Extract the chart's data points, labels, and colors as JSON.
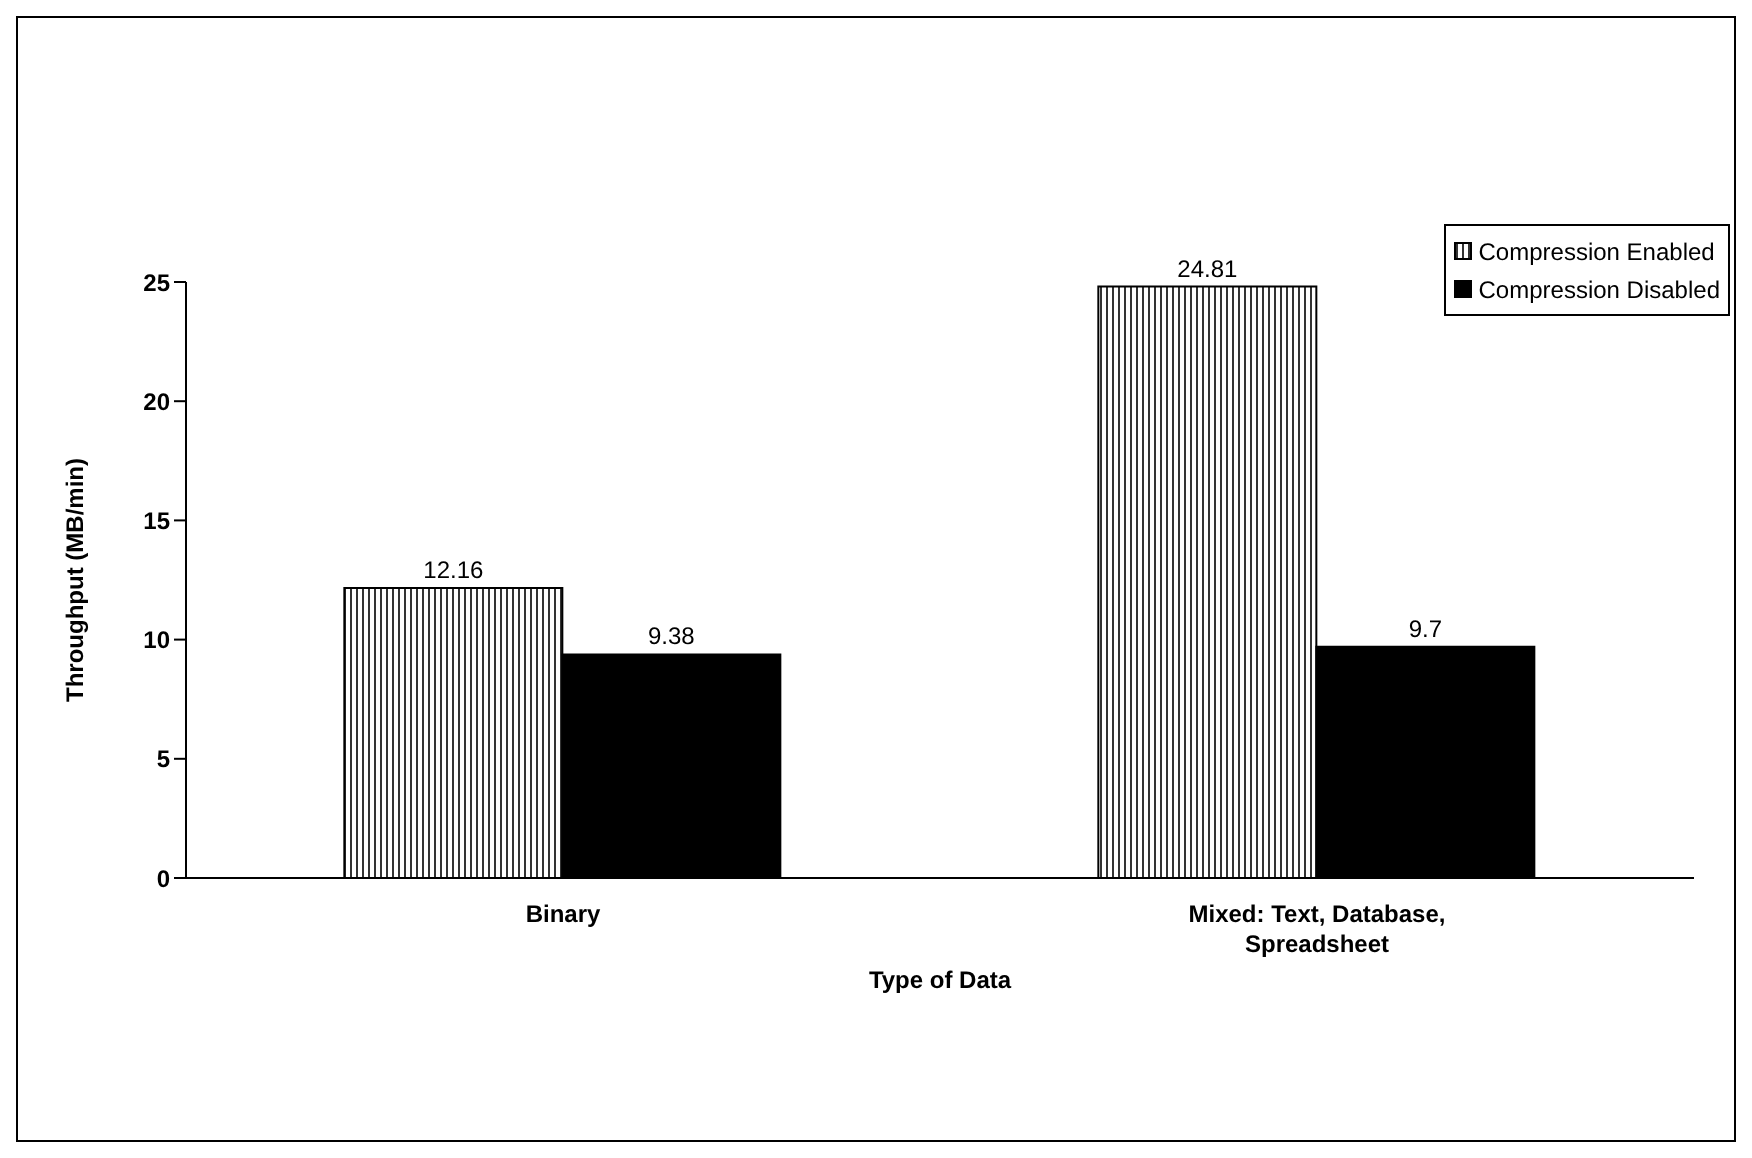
{
  "chart_data": {
    "type": "bar",
    "xlabel": "Type of Data",
    "ylabel": "Throughput (MB/min)",
    "categories": [
      "Binary",
      "Mixed: Text, Database, Spreadsheet"
    ],
    "series": [
      {
        "name": "Compression Enabled",
        "color": "#000000",
        "values": [
          12.16,
          24.81
        ]
      },
      {
        "name": "Compression Disabled",
        "color": "#000000",
        "values": [
          9.38,
          9.7
        ]
      }
    ],
    "ylim": [
      0,
      25
    ],
    "yticks": [
      0,
      5,
      10,
      15,
      20,
      25
    ],
    "grid": false,
    "legend": "top right",
    "data_labels": true
  }
}
